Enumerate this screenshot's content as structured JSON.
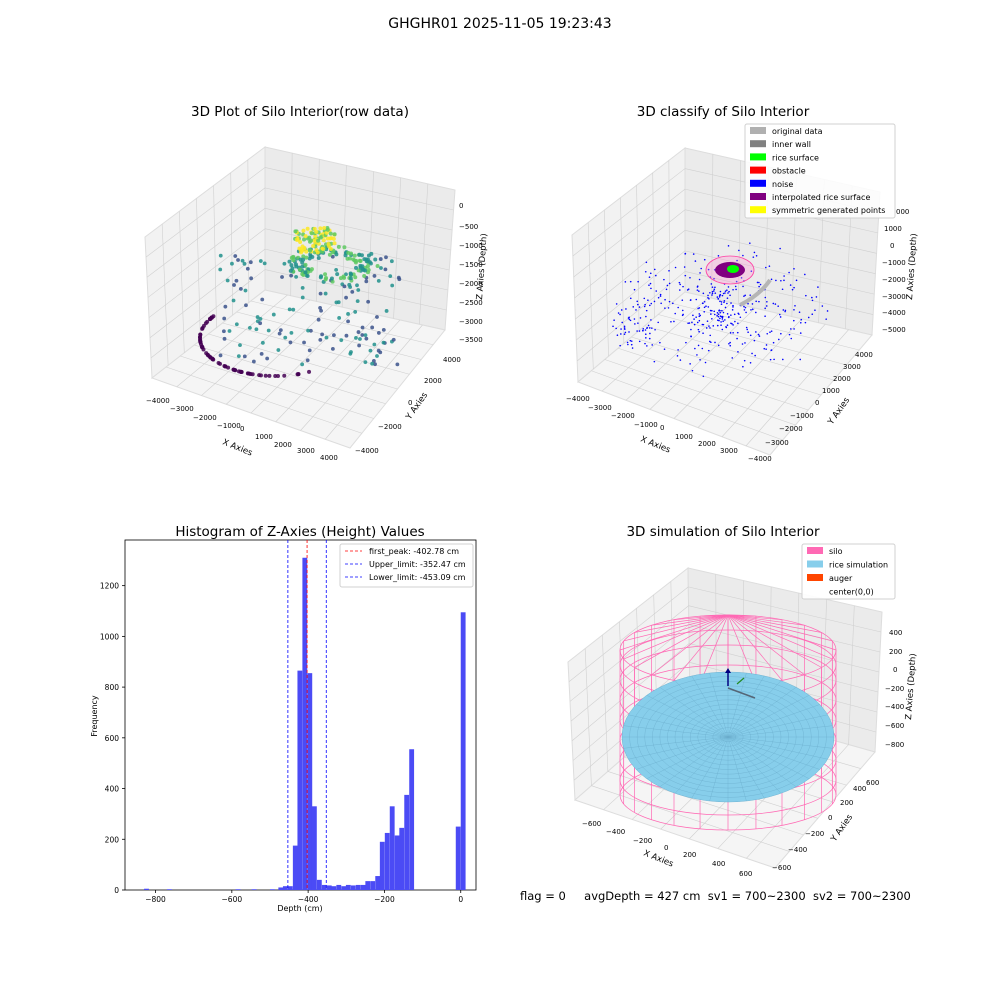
{
  "figure_title": "GHGHR01 2025-11-05 19:23:43",
  "colors": {
    "viridis": [
      "#440154",
      "#3b528b",
      "#21918c",
      "#5ec962",
      "#fde725"
    ],
    "hist_bar": "#4b4bf5",
    "peak_line": "#ff0000",
    "limit_line": "#0000ff",
    "silo_wire": "#ff69b4",
    "rice_surface": "#87ceeb"
  },
  "chart_data": [
    {
      "type": "scatter3d",
      "title": "3D Plot of Silo Interior(row data)",
      "xlabel": "X Axies",
      "ylabel": "Y Axies",
      "zlabel": "Z Axies (Depth)",
      "xlim": [
        -4000,
        4000
      ],
      "ylim": [
        -4000,
        4000
      ],
      "zlim": [
        -3500,
        0
      ],
      "xticks": [
        "−4000",
        "−3000",
        "−2000",
        "−1000",
        "0",
        "1000",
        "2000",
        "3000",
        "4000"
      ],
      "yticks": [
        "−4000",
        "−2000",
        "0",
        "2000",
        "4000"
      ],
      "zticks": [
        "0",
        "−500",
        "−1000",
        "−1500",
        "−2000",
        "−2500",
        "−3000",
        "−3500"
      ],
      "colormap": "viridis"
    },
    {
      "type": "scatter3d",
      "title": "3D classify of Silo Interior",
      "xlabel": "X Axies",
      "ylabel": "Y Axies",
      "zlabel": "Z Axies (Depth)",
      "xticks": [
        "−4000",
        "−3000",
        "−2000",
        "−1000",
        "0",
        "1000",
        "2000",
        "3000",
        "4000"
      ],
      "yticks": [
        "−4000",
        "−3000",
        "−2000",
        "−1000",
        "0",
        "1000",
        "2000",
        "3000",
        "4000"
      ],
      "zticks": [
        "2000",
        "1000",
        "0",
        "−1000",
        "−2000",
        "−3000",
        "−4000",
        "−5000"
      ],
      "zticks_visible": [
        "1000",
        "0",
        "−1000",
        "−2000",
        "−3000",
        "−4000",
        "−5000"
      ],
      "z_partial_tick": "000",
      "legend": [
        {
          "label": "original data",
          "color": "#b0b0b0"
        },
        {
          "label": "inner wall",
          "color": "#808080"
        },
        {
          "label": "rice surface",
          "color": "#00ff00"
        },
        {
          "label": "obstacle",
          "color": "#ff0000"
        },
        {
          "label": "noise",
          "color": "#0000ff"
        },
        {
          "label": "interpolated rice surface",
          "color": "#800080"
        },
        {
          "label": "symmetric generated points",
          "color": "#ffff00"
        }
      ],
      "legend_loc": "upper right"
    },
    {
      "type": "bar",
      "title": "Histogram of Z-Axies (Height) Values",
      "xlabel": "Depth (cm)",
      "ylabel": "Frequency",
      "xlim": [
        -880,
        40
      ],
      "ylim": [
        0,
        1380
      ],
      "xticks": [
        "−800",
        "−600",
        "−400",
        "−200",
        "0"
      ],
      "xtick_values": [
        -800,
        -600,
        -400,
        -200,
        0
      ],
      "yticks": [
        "0",
        "200",
        "400",
        "600",
        "800",
        "1000",
        "1200"
      ],
      "ytick_values": [
        0,
        200,
        400,
        600,
        800,
        1000,
        1200
      ],
      "bin_width": 12.7,
      "bins": [
        {
          "x": -830,
          "y": 5
        },
        {
          "x": -770,
          "y": 3
        },
        {
          "x": -590,
          "y": 3
        },
        {
          "x": -548,
          "y": 3
        },
        {
          "x": -500,
          "y": 3
        },
        {
          "x": -478,
          "y": 10
        },
        {
          "x": -466,
          "y": 15
        },
        {
          "x": -453,
          "y": 15
        },
        {
          "x": -440,
          "y": 175
        },
        {
          "x": -428,
          "y": 865
        },
        {
          "x": -415,
          "y": 1310
        },
        {
          "x": -402,
          "y": 855
        },
        {
          "x": -390,
          "y": 330
        },
        {
          "x": -377,
          "y": 40
        },
        {
          "x": -364,
          "y": 20
        },
        {
          "x": -351,
          "y": 18
        },
        {
          "x": -339,
          "y": 15
        },
        {
          "x": -326,
          "y": 20
        },
        {
          "x": -313,
          "y": 15
        },
        {
          "x": -301,
          "y": 20
        },
        {
          "x": -288,
          "y": 18
        },
        {
          "x": -275,
          "y": 20
        },
        {
          "x": -262,
          "y": 20
        },
        {
          "x": -250,
          "y": 35
        },
        {
          "x": -237,
          "y": 35
        },
        {
          "x": -224,
          "y": 55
        },
        {
          "x": -212,
          "y": 190
        },
        {
          "x": -199,
          "y": 225
        },
        {
          "x": -186,
          "y": 330
        },
        {
          "x": -173,
          "y": 215
        },
        {
          "x": -161,
          "y": 245
        },
        {
          "x": -148,
          "y": 375
        },
        {
          "x": -135,
          "y": 555
        },
        {
          "x": -123,
          "y": 250
        },
        {
          "x": -110,
          "y": 1095
        }
      ],
      "bins_offset": 110,
      "vlines": [
        {
          "label": "first_peak: -402.78 cm",
          "x": -402.78,
          "color": "#ff0000"
        },
        {
          "label": "Upper_limit: -352.47 cm",
          "x": -352.47,
          "color": "#0000ff"
        },
        {
          "label": "Lower_limit: -453.09 cm",
          "x": -453.09,
          "color": "#0000ff"
        }
      ],
      "legend_loc": "upper right"
    },
    {
      "type": "surface3d",
      "title": "3D simulation of Silo Interior",
      "xlabel": "X Axies",
      "ylabel": "Y Axies",
      "zlabel": "Z Axies (Depth)",
      "xticks": [
        "−600",
        "−400",
        "−200",
        "0",
        "200",
        "400",
        "600"
      ],
      "yticks": [
        "−600",
        "−400",
        "−200",
        "0",
        "200",
        "400",
        "600"
      ],
      "zticks": [
        "400",
        "200",
        "0",
        "−200",
        "−400",
        "−600",
        "−800"
      ],
      "legend": [
        {
          "label": "silo",
          "color": "#ff69b4"
        },
        {
          "label": "rice simulation",
          "color": "#87ceeb"
        },
        {
          "label": "auger",
          "color": "#ff4500"
        },
        {
          "label": "center(0,0)",
          "color": ""
        }
      ],
      "legend_loc": "upper right"
    }
  ],
  "status": {
    "flag": "flag = 0",
    "avg_depth": "avgDepth = 427 cm",
    "sv1": "sv1 = 700~2300",
    "sv2": "sv2 = 700~2300"
  }
}
